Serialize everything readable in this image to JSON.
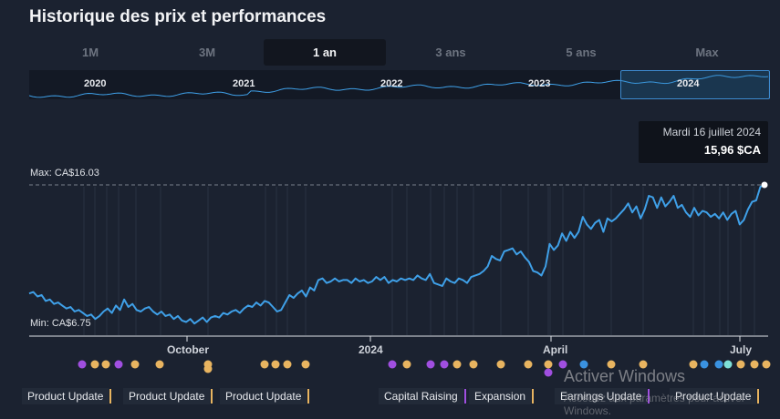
{
  "title": "Historique des prix et performances",
  "tabs": [
    {
      "label": "1M",
      "active": false
    },
    {
      "label": "3M",
      "active": false
    },
    {
      "label": "1 an",
      "active": true
    },
    {
      "label": "3 ans",
      "active": false
    },
    {
      "label": "5 ans",
      "active": false
    },
    {
      "label": "Max",
      "active": false
    }
  ],
  "navigator": {
    "years": [
      "2020",
      "2021",
      "2022",
      "2023",
      "2024"
    ],
    "selected_range": "2024"
  },
  "tooltip": {
    "date": "Mardi 16 juillet 2024",
    "price": "15,96 $CA"
  },
  "labels": {
    "max": "Max: CA$16.03",
    "min": "Min: CA$6.75"
  },
  "x_axis": [
    "October",
    "2024",
    "April",
    "July"
  ],
  "colors": {
    "background": "#1b2230",
    "line": "#3fa0e8",
    "dividend": "#e8b460",
    "capital_raising": "#a04fe0",
    "earnings": "#3a92e0",
    "other": "#7fe0d8"
  },
  "chart_data": {
    "type": "line",
    "unit": "CA$",
    "y_range": [
      6.75,
      16.03
    ],
    "values": [
      8.8,
      8.9,
      8.6,
      8.7,
      8.3,
      8.4,
      8.1,
      8.2,
      8.0,
      7.8,
      7.9,
      7.6,
      7.7,
      7.5,
      7.3,
      7.4,
      7.1,
      7.3,
      7.6,
      7.8,
      7.5,
      8.0,
      7.7,
      8.4,
      7.9,
      8.1,
      7.7,
      7.6,
      7.8,
      7.9,
      7.6,
      7.4,
      7.6,
      7.3,
      7.4,
      7.1,
      7.3,
      7.0,
      6.9,
      7.1,
      6.8,
      7.0,
      7.2,
      6.9,
      7.2,
      7.3,
      7.2,
      7.5,
      7.4,
      7.6,
      7.7,
      7.5,
      7.8,
      8.0,
      7.9,
      8.2,
      8.0,
      8.3,
      8.2,
      7.9,
      7.6,
      7.7,
      8.2,
      8.7,
      8.5,
      8.8,
      9.0,
      8.6,
      9.2,
      9.0,
      9.7,
      9.8,
      9.5,
      9.6,
      9.8,
      9.6,
      9.7,
      9.7,
      9.5,
      9.8,
      9.6,
      9.7,
      9.5,
      9.6,
      9.9,
      9.7,
      9.9,
      9.5,
      9.7,
      9.6,
      9.8,
      9.7,
      9.8,
      9.7,
      10.0,
      9.8,
      9.7,
      10.1,
      9.5,
      9.4,
      9.3,
      9.8,
      9.6,
      9.5,
      9.8,
      9.7,
      9.5,
      9.9,
      10.0,
      10.1,
      10.3,
      10.6,
      11.3,
      11.1,
      11.0,
      11.6,
      11.7,
      11.8,
      11.4,
      11.6,
      11.2,
      10.9,
      10.3,
      10.2,
      10.0,
      10.6,
      12.1,
      11.7,
      12.0,
      12.8,
      12.3,
      12.9,
      12.5,
      12.9,
      13.9,
      13.4,
      13.1,
      13.5,
      13.7,
      12.9,
      13.8,
      13.6,
      13.8,
      14.1,
      14.4,
      14.8,
      14.2,
      14.6,
      13.8,
      14.4,
      15.3,
      15.2,
      14.5,
      15.2,
      14.6,
      14.9,
      15.3,
      14.5,
      14.7,
      14.2,
      13.9,
      14.5,
      14.0,
      14.3,
      14.2,
      13.9,
      14.1,
      13.8,
      14.2,
      13.7,
      14.1,
      14.3,
      13.4,
      13.7,
      14.4,
      14.9,
      15.0,
      15.9,
      16.03
    ]
  },
  "events": [
    {
      "label": "Product Update",
      "color": "#e8b460"
    },
    {
      "label": "Product Update",
      "color": "#e8b460"
    },
    {
      "label": "Product Update",
      "color": "#e8b460"
    },
    {
      "label": "Capital Raising",
      "color": "#a04fe0"
    },
    {
      "label": "Expansion",
      "color": "#e8b460"
    },
    {
      "label": "Earnings Update",
      "color": "#a04fe0"
    },
    {
      "label": "Product Update",
      "color": "#e8b460"
    }
  ],
  "event_dots": [
    "capital_raising",
    "dividend",
    "dividend",
    "capital_raising",
    "dividend",
    "dividend",
    "dividend",
    "dividend",
    "dividend",
    "dividend",
    "dividend",
    "dividend",
    "capital_raising",
    "dividend",
    "capital_raising",
    "capital_raising",
    "dividend",
    "dividend",
    "dividend",
    "dividend",
    "dividend",
    "capital_raising",
    "capital_raising",
    "earnings",
    "dividend",
    "dividend",
    "dividend",
    "earnings",
    "earnings",
    "other",
    "dividend",
    "dividend",
    "dividend"
  ],
  "watermark": {
    "title": "Activer Windows",
    "subtitle": "Accédez aux paramètres pour activer Windows."
  }
}
